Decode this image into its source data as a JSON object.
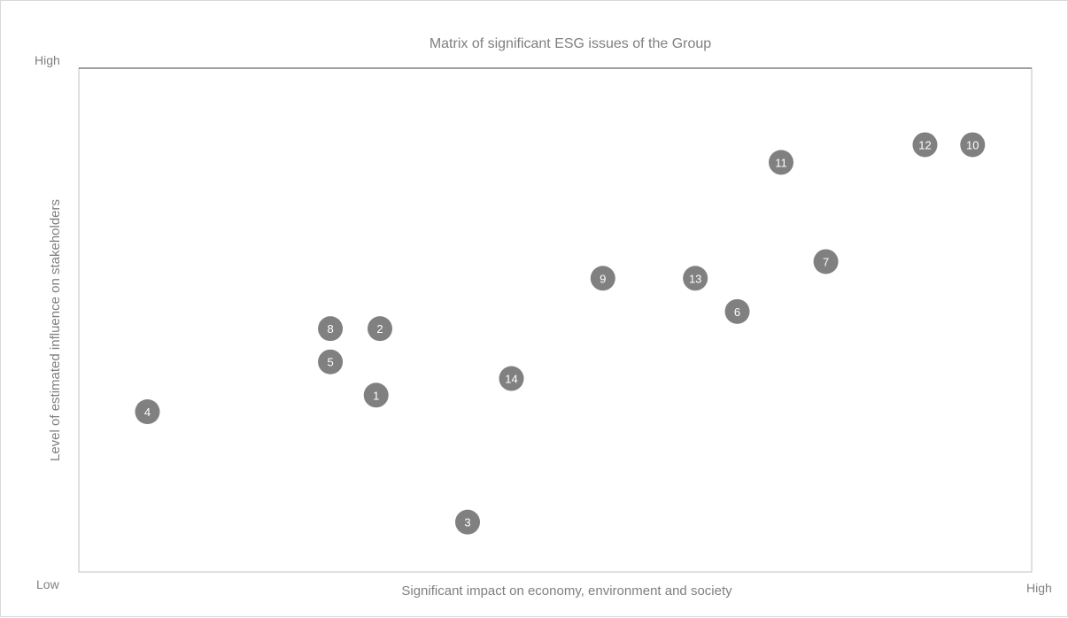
{
  "chart_data": {
    "type": "scatter",
    "title": "Matrix of significant ESG issues of the Group",
    "xlabel": "Significant impact on economy, environment and society",
    "ylabel": "Level of estimated influence on stakeholders",
    "x_ticks": {
      "low": "",
      "high": "High"
    },
    "y_ticks": {
      "low": "Low",
      "high": "High"
    },
    "xlim": [
      0,
      100
    ],
    "ylim": [
      0,
      100
    ],
    "grid": false,
    "legend": "none",
    "marker_color": "#808080",
    "marker_label_color": "#ffffff",
    "points": [
      {
        "label": "1",
        "x": 31.2,
        "y": 35.1
      },
      {
        "label": "2",
        "x": 31.6,
        "y": 48.3
      },
      {
        "label": "3",
        "x": 40.8,
        "y": 9.9
      },
      {
        "label": "4",
        "x": 7.2,
        "y": 31.8
      },
      {
        "label": "5",
        "x": 26.4,
        "y": 41.7
      },
      {
        "label": "6",
        "x": 69.1,
        "y": 51.7
      },
      {
        "label": "7",
        "x": 78.4,
        "y": 61.6
      },
      {
        "label": "8",
        "x": 26.4,
        "y": 48.3
      },
      {
        "label": "9",
        "x": 55.0,
        "y": 58.3
      },
      {
        "label": "10",
        "x": 93.8,
        "y": 84.8
      },
      {
        "label": "11",
        "x": 73.7,
        "y": 81.3
      },
      {
        "label": "12",
        "x": 88.8,
        "y": 84.8
      },
      {
        "label": "13",
        "x": 64.7,
        "y": 58.3
      },
      {
        "label": "14",
        "x": 45.4,
        "y": 38.4
      }
    ]
  }
}
